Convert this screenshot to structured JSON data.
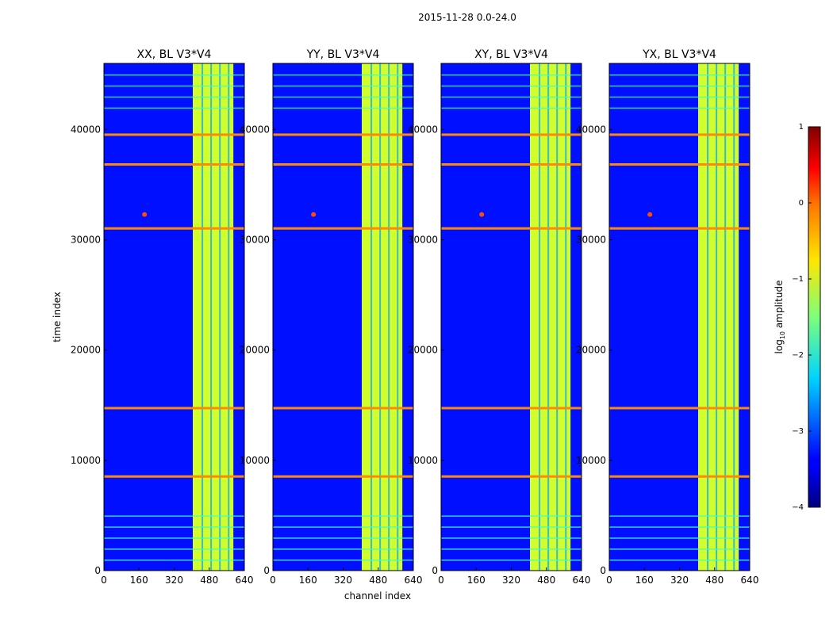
{
  "chart_data": {
    "type": "heatmap",
    "suptitle": "2015-11-28 0.0-24.0",
    "xlabel": "channel index",
    "ylabel": "time index",
    "xlim": [
      0,
      640
    ],
    "ylim": [
      0,
      46000
    ],
    "xticks": [
      0,
      160,
      320,
      480,
      640
    ],
    "yticks": [
      0,
      10000,
      20000,
      30000,
      40000
    ],
    "colormap": "jet",
    "colorbar": {
      "label": "log10 amplitude",
      "label_base": "log",
      "label_sub": "10",
      "label_rest": " amplitude",
      "range": [
        -4,
        1
      ],
      "ticks": [
        1,
        0,
        -1,
        -2,
        -3,
        -4
      ],
      "tick_labels": [
        "1",
        "0",
        "−1",
        "−2",
        "−3",
        "−4"
      ]
    },
    "panels": [
      {
        "title": "XX, BL V3*V4"
      },
      {
        "title": "YY, BL V3*V4"
      },
      {
        "title": "XY, BL V3*V4"
      },
      {
        "title": "YX, BL V3*V4"
      }
    ],
    "features": {
      "bright_channel_band": [
        405,
        590
      ],
      "noise_floor_log10": -3.3,
      "band_level_log10": -1.1,
      "horizontal_rfi_rows": [
        8500,
        14700,
        31000,
        36800,
        39500
      ],
      "point_source": {
        "channel": 185,
        "time": 32300
      }
    }
  }
}
